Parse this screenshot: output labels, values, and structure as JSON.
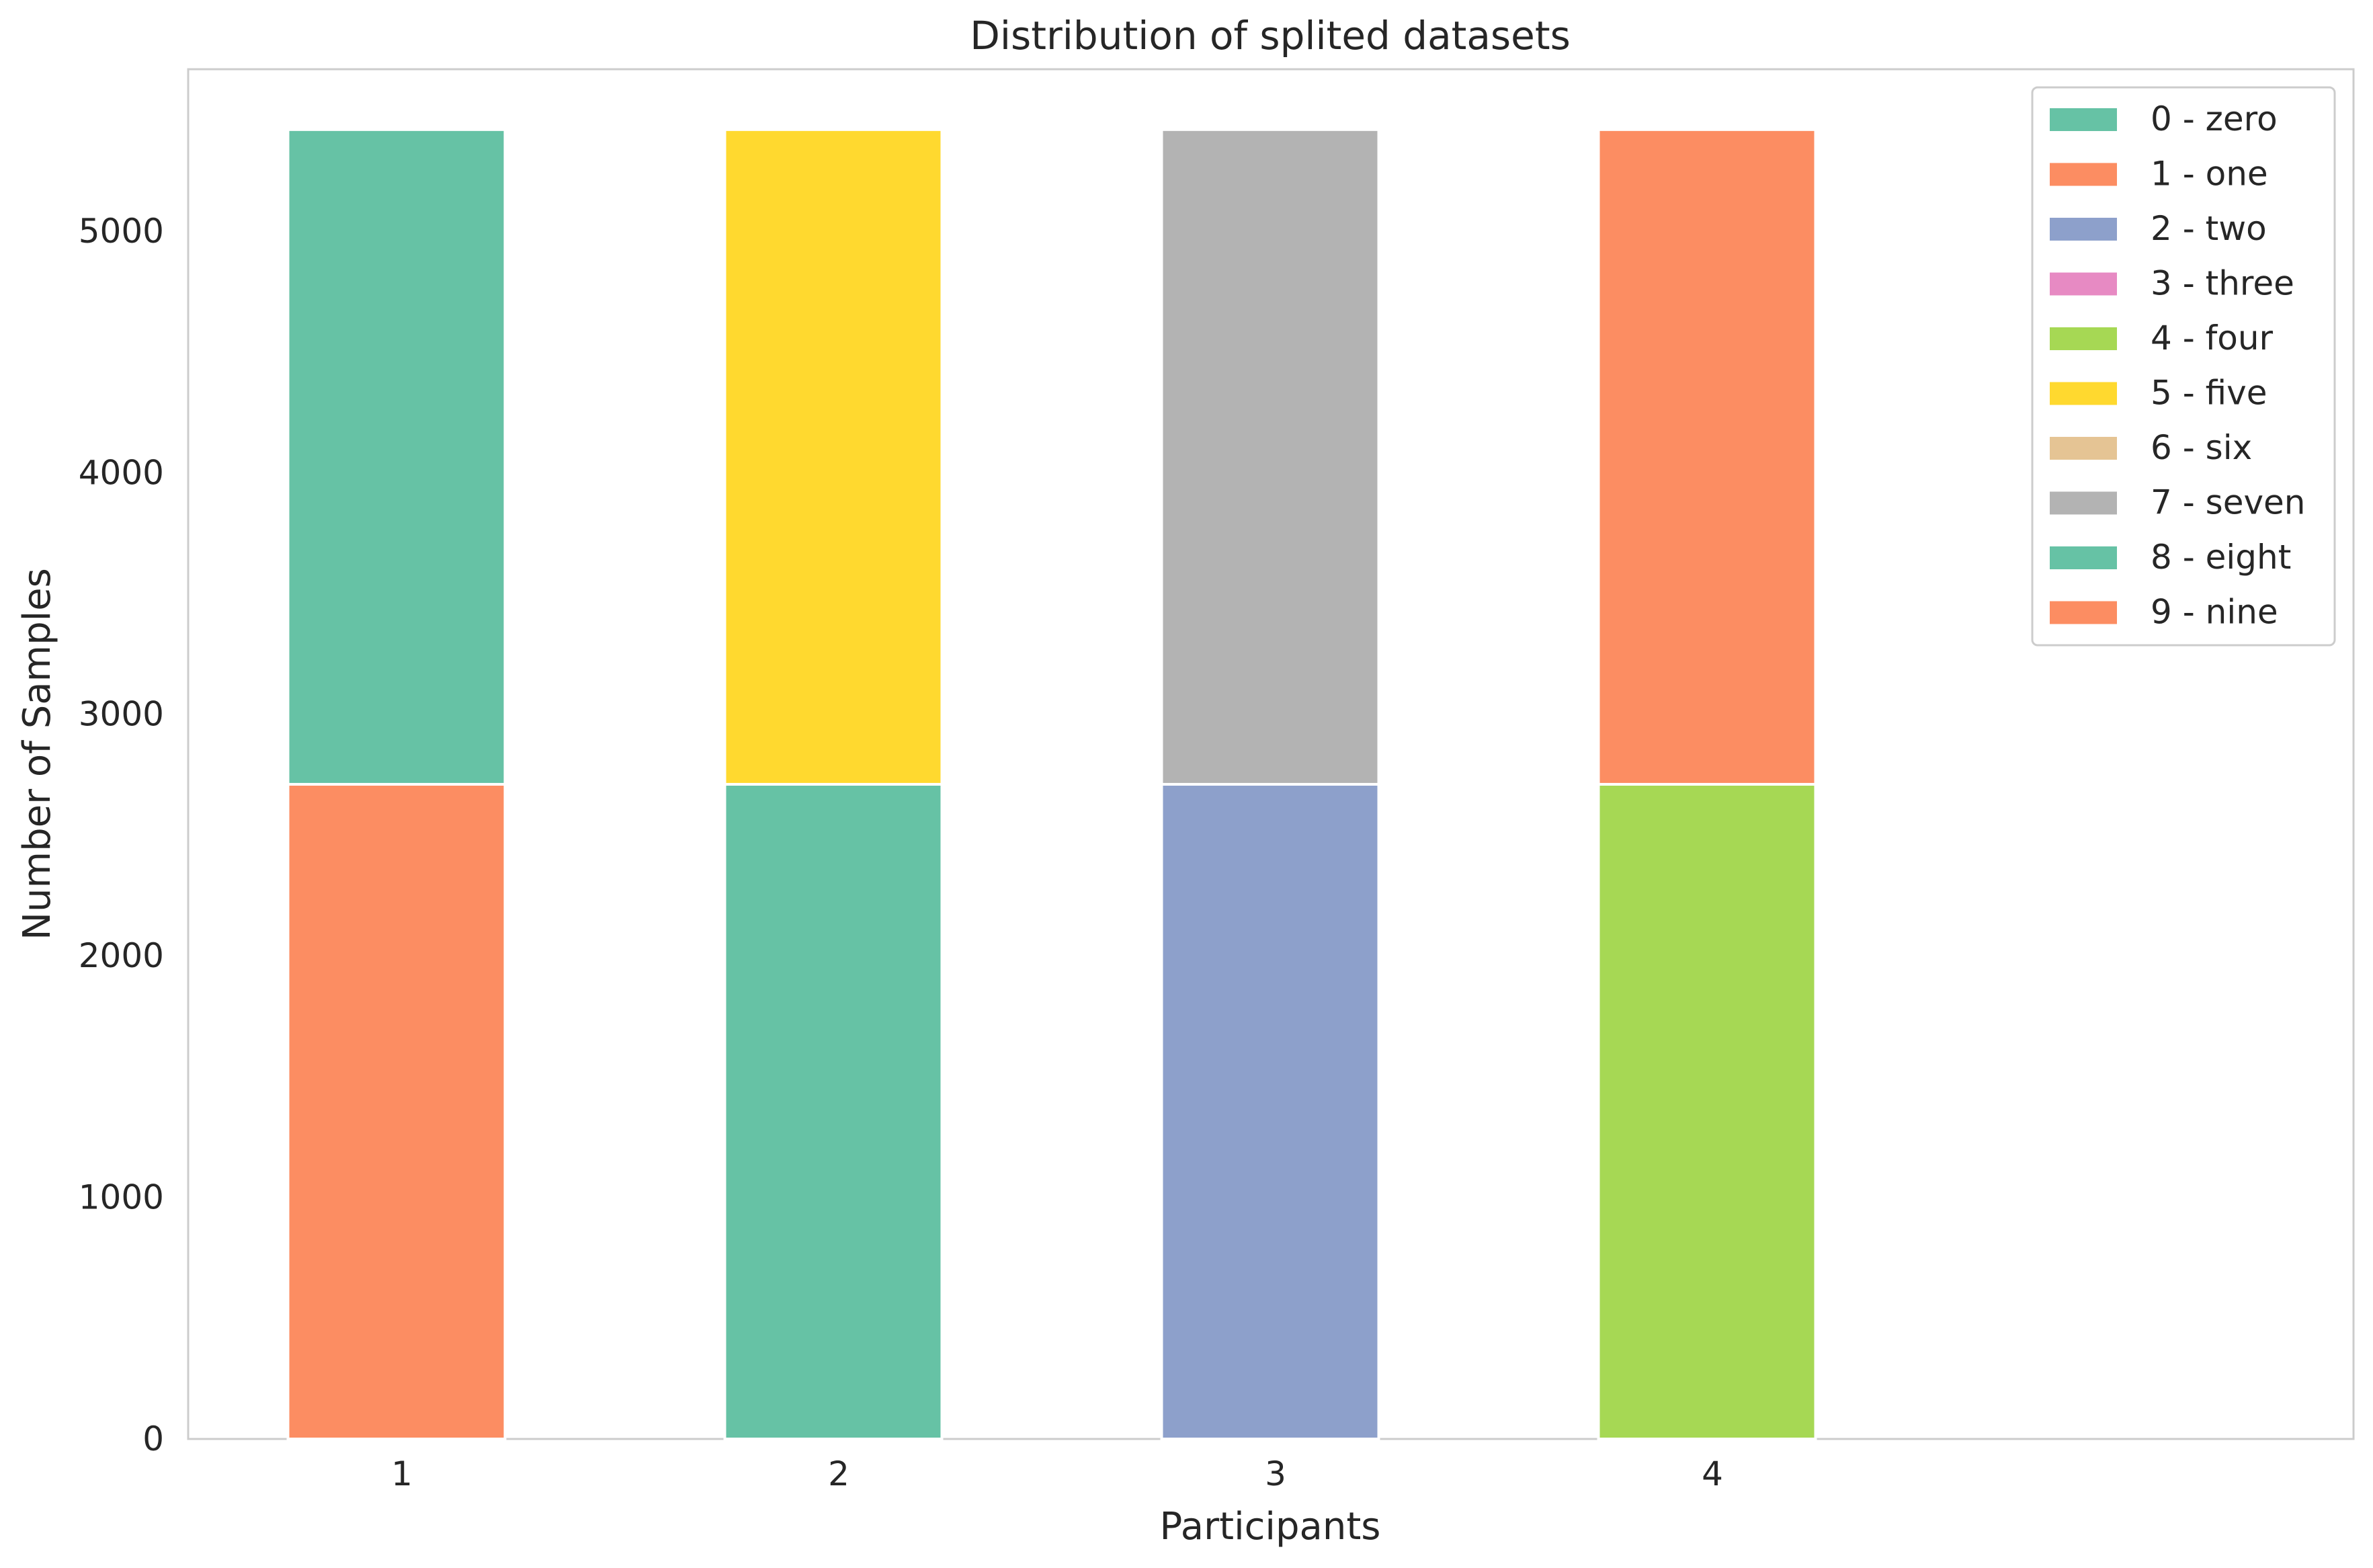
{
  "chart_data": {
    "type": "bar",
    "stacked": true,
    "title": "Distribution of splited datasets",
    "xlabel": "Participants",
    "ylabel": "Number of Samples",
    "categories": [
      "1",
      "2",
      "3",
      "4"
    ],
    "ylim": [
      0,
      5670
    ],
    "yticks": [
      0,
      1000,
      2000,
      3000,
      4000,
      5000
    ],
    "grid": false,
    "legend_position": "top-right",
    "legend": [
      {
        "label": "0 - zero",
        "color": "#66c2a5"
      },
      {
        "label": "1 - one",
        "color": "#fc8d62"
      },
      {
        "label": "2 - two",
        "color": "#8da0cb"
      },
      {
        "label": "3 - three",
        "color": "#e78ac3"
      },
      {
        "label": "4 - four",
        "color": "#a6d854"
      },
      {
        "label": "5 - five",
        "color": "#ffd92f"
      },
      {
        "label": "6 - six",
        "color": "#e5c494"
      },
      {
        "label": "7 - seven",
        "color": "#b3b3b3"
      },
      {
        "label": "8 - eight",
        "color": "#66c2a5"
      },
      {
        "label": "9 - nine",
        "color": "#fc8d62"
      }
    ],
    "series": [
      {
        "name": "0 - zero",
        "values": [
          2710,
          2710,
          0,
          0
        ]
      },
      {
        "name": "1 - one",
        "values": [
          2710,
          0,
          0,
          0
        ]
      },
      {
        "name": "2 - two",
        "values": [
          0,
          0,
          2710,
          0
        ]
      },
      {
        "name": "3 - three",
        "values": [
          0,
          0,
          0,
          0
        ]
      },
      {
        "name": "4 - four",
        "values": [
          0,
          0,
          0,
          2710
        ]
      },
      {
        "name": "5 - five",
        "values": [
          0,
          2710,
          0,
          0
        ]
      },
      {
        "name": "6 - six",
        "values": [
          0,
          0,
          0,
          0
        ]
      },
      {
        "name": "7 - seven",
        "values": [
          0,
          0,
          2710,
          0
        ]
      },
      {
        "name": "8 - eight",
        "values": [
          0,
          0,
          0,
          0
        ]
      },
      {
        "name": "9 - nine",
        "values": [
          0,
          0,
          0,
          2710
        ]
      }
    ],
    "stack_order": [
      [
        "1 - one",
        "0 - zero"
      ],
      [
        "0 - zero",
        "5 - five"
      ],
      [
        "2 - two",
        "7 - seven"
      ],
      [
        "4 - four",
        "9 - nine"
      ]
    ]
  }
}
